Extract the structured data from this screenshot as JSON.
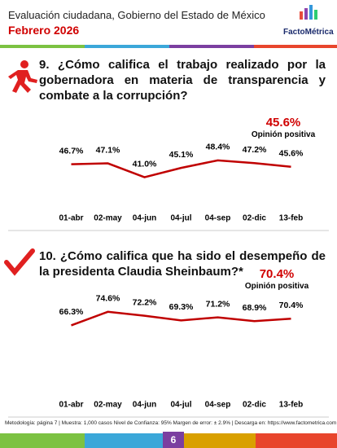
{
  "header": {
    "title": "Evaluación ciudadana, Gobierno del Estado de México",
    "subtitle": "Febrero 2026",
    "logo": "FactoMétrica"
  },
  "chart_data": [
    {
      "type": "line",
      "title": "9. ¿Cómo califica el trabajo realizado por la gobernadora en materia de transparencia y combate a la corrupción?",
      "highlight": {
        "value": 45.6,
        "label": "45.6%"
      },
      "highlight_label": "Opinión positiva",
      "categories": [
        "01-abr",
        "02-may",
        "04-jun",
        "04-jul",
        "04-sep",
        "02-dic",
        "13-feb"
      ],
      "values": [
        46.7,
        47.1,
        41.0,
        45.1,
        48.4,
        47.2,
        45.6
      ],
      "value_labels": [
        "46.7%",
        "47.1%",
        "41.0%",
        "45.1%",
        "48.4%",
        "47.2%",
        "45.6%"
      ],
      "color": "#c00000",
      "ylim": [
        28,
        58
      ]
    },
    {
      "type": "line",
      "title": "10. ¿Cómo califica que ha sido el desempeño de la presidenta Claudia Sheinbaum?*",
      "highlight": {
        "value": 70.4,
        "label": "70.4%"
      },
      "highlight_label": "Opinión positiva",
      "categories": [
        "01-abr",
        "02-may",
        "04-jun",
        "04-jul",
        "04-sep",
        "02-dic",
        "13-feb"
      ],
      "values": [
        66.3,
        74.6,
        72.2,
        69.3,
        71.2,
        68.9,
        70.4
      ],
      "value_labels": [
        "66.3%",
        "74.6%",
        "72.2%",
        "69.3%",
        "71.2%",
        "68.9%",
        "70.4%"
      ],
      "color": "#c00000",
      "ylim": [
        26,
        86
      ]
    }
  ],
  "footer": {
    "note": "Metodología: página 7 | Muestra: 1,000 casos Nivel de Confianza: 95% Margen de error: ± 2.9% | Descarga en: https://www.factometrica.com",
    "page": "6"
  }
}
